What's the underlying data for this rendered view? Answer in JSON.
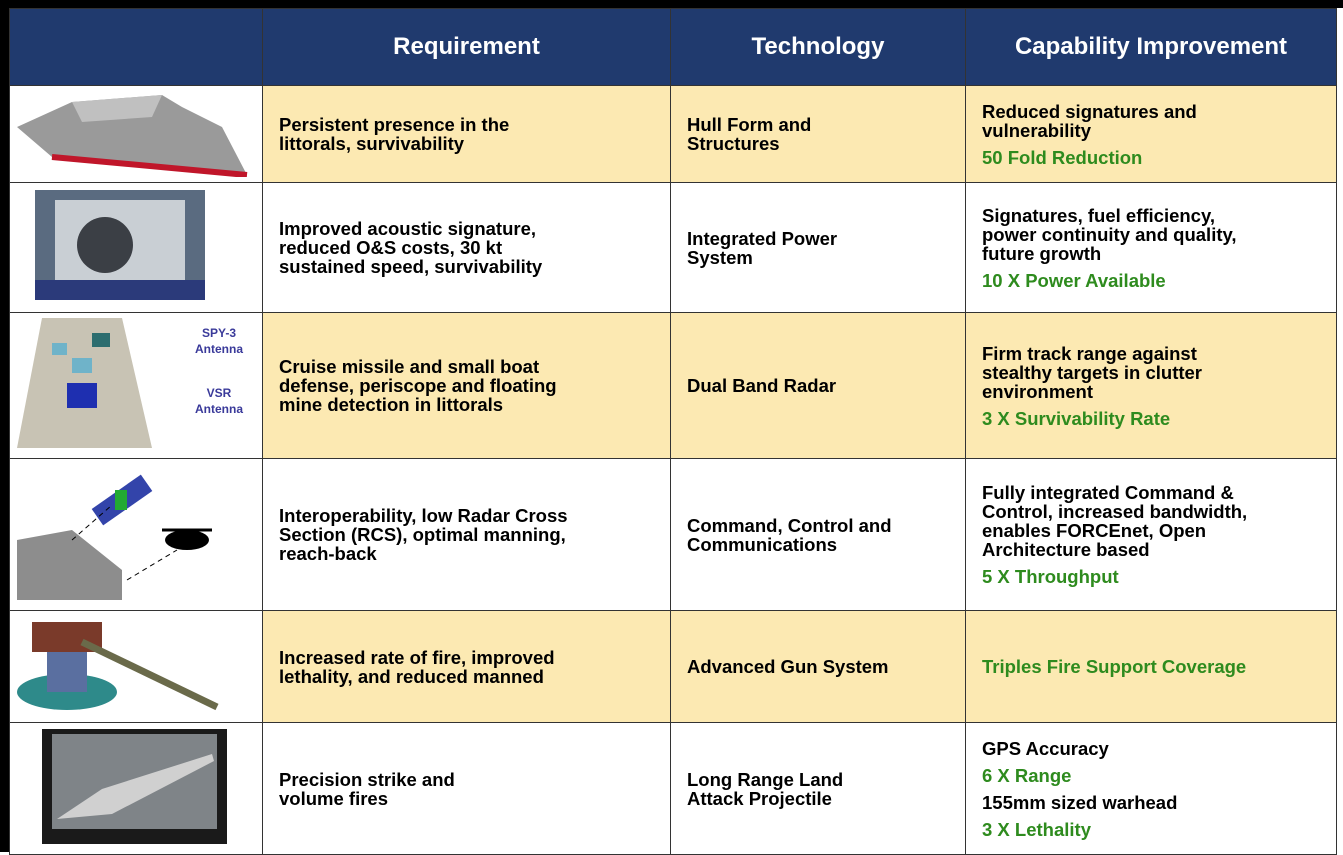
{
  "header": {
    "columns": [
      "Requirement",
      "Technology",
      "Capability Improvement"
    ]
  },
  "table": {
    "rows": [
      {
        "requirement": "Persistent presence in the\nlittorals, survivability",
        "technology": "Hull Form and\nStructures",
        "capability": [
          {
            "text": "Reduced signatures and\nvulnerability",
            "color": "#000000"
          },
          {
            "text": "50 Fold Reduction",
            "color": "#2e8b1e"
          }
        ]
      },
      {
        "requirement": "Improved acoustic signature,\nreduced O&S costs, 30 kt\nsustained speed, survivability",
        "technology": "Integrated Power\nSystem",
        "capability": [
          {
            "text": "Signatures, fuel efficiency,\npower continuity and quality,\nfuture growth",
            "color": "#000000"
          },
          {
            "text": "10 X Power Available",
            "color": "#2e8b1e"
          }
        ]
      },
      {
        "requirement": "Cruise missile and small boat\ndefense, periscope and floating\nmine detection in littorals",
        "technology": "Dual Band Radar",
        "capability": [
          {
            "text": "Firm track range against\nstealthy targets in clutter\nenvironment",
            "color": "#000000"
          },
          {
            "text": "3 X Survivability Rate",
            "color": "#2e8b1e"
          }
        ],
        "annotations": [
          "SPY-3\nAntenna",
          "VSR\nAntenna"
        ]
      },
      {
        "requirement": "Interoperability, low Radar Cross\nSection (RCS), optimal manning,\nreach-back",
        "technology": "Command, Control and\nCommunications",
        "capability": [
          {
            "text": "Fully integrated Command &\nControl, increased bandwidth,\nenables FORCEnet, Open\nArchitecture based",
            "color": "#000000"
          },
          {
            "text": "5 X Throughput",
            "color": "#2e8b1e"
          }
        ]
      },
      {
        "requirement": "Increased rate of fire, improved\nlethality, and reduced manned",
        "technology": "Advanced Gun System",
        "capability": [
          {
            "text": "Triples Fire Support Coverage",
            "color": "#2e8b1e"
          }
        ]
      },
      {
        "requirement": "Precision strike and\nvolume fires",
        "technology": "Long Range Land\nAttack Projectile",
        "capability": [
          {
            "text": "GPS Accuracy",
            "color": "#000000"
          },
          {
            "text": "6 X Range",
            "color": "#2e8b1e"
          },
          {
            "text": "155mm sized warhead",
            "color": "#000000"
          },
          {
            "text": "3 X Lethality",
            "color": "#2e8b1e"
          }
        ]
      }
    ]
  }
}
